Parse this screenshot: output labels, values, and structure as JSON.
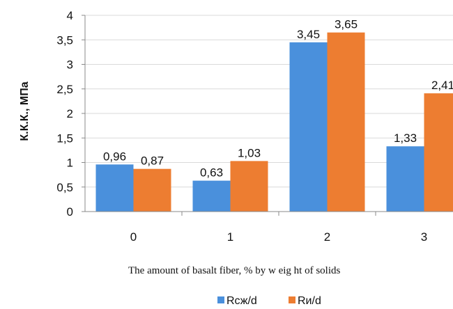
{
  "chart_data": {
    "type": "bar",
    "categories": [
      "0",
      "1",
      "2",
      "3"
    ],
    "series": [
      {
        "name": "Rсж/d",
        "values": [
          0.96,
          0.63,
          3.45,
          1.33
        ],
        "labels": [
          "0,96",
          "0,63",
          "3,45",
          "1,33"
        ],
        "color": "#4a90dc"
      },
      {
        "name": "Rи/d",
        "values": [
          0.87,
          1.03,
          3.65,
          2.41
        ],
        "labels": [
          "0,87",
          "1,03",
          "3,65",
          "2,41"
        ],
        "color": "#ed7d31"
      }
    ],
    "yticks": [
      "0",
      "0,5",
      "1",
      "1,5",
      "2",
      "2,5",
      "3",
      "3,5",
      "4"
    ],
    "ylim": [
      0,
      4
    ],
    "ylabel": "К.К.К., МПа",
    "xlabel": "The amount of basalt fiber, % by w eig ht of solids",
    "legend_position": "bottom",
    "grid": true
  }
}
